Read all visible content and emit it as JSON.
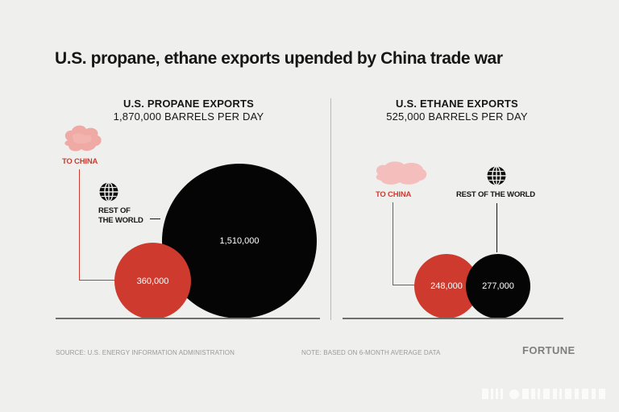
{
  "title": "U.S. propane, ethane exports upended by China trade war",
  "chart_data": [
    {
      "type": "bubble",
      "title": "U.S. PROPANE EXPORTS",
      "subtitle": "1,870,000 BARRELS PER DAY",
      "unit": "barrels per day",
      "total": 1870000,
      "series": [
        {
          "name": "TO CHINA",
          "value": 360000,
          "label": "360,000",
          "color": "#cf3a2e"
        },
        {
          "name": "REST OF THE WORLD",
          "value": 1510000,
          "label": "1,510,000",
          "color": "#050505"
        }
      ]
    },
    {
      "type": "bubble",
      "title": "U.S. ETHANE EXPORTS",
      "subtitle": "525,000 BARRELS PER DAY",
      "unit": "barrels per day",
      "total": 525000,
      "series": [
        {
          "name": "TO CHINA",
          "value": 248000,
          "label": "248,000",
          "color": "#cf3a2e"
        },
        {
          "name": "REST OF THE WORLD",
          "value": 277000,
          "label": "277,000",
          "color": "#050505"
        }
      ]
    }
  ],
  "labels": {
    "propane_china": "TO CHINA",
    "propane_row_line1": "REST OF",
    "propane_row_line2": "THE WORLD",
    "ethane_china": "TO CHINA",
    "ethane_row": "REST OF THE WORLD"
  },
  "footer": {
    "source": "SOURCE: U.S. ENERGY INFORMATION ADMINISTRATION",
    "note": "NOTE: BASED ON 6-MONTH AVERAGE DATA",
    "brand": "FORTUNE"
  },
  "icons": {
    "china": "china-map-icon",
    "world": "globe-icon"
  }
}
